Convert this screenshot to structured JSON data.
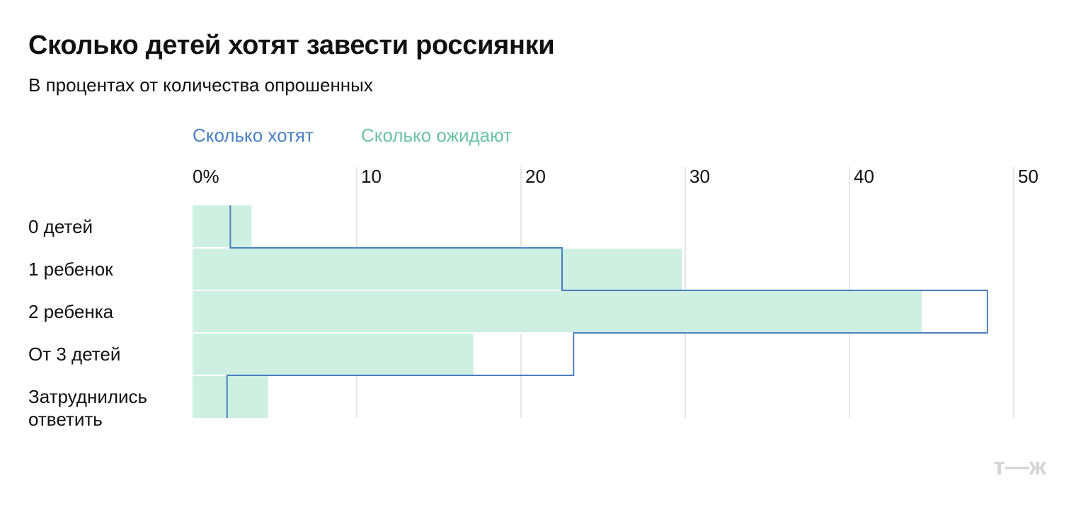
{
  "header": {
    "title": "Сколько детей хотят завести россиянки",
    "subtitle": "В процентах от количества опрошенных"
  },
  "logo": {
    "text": "т—ж"
  },
  "colors": {
    "want": "#4a7fc1",
    "expect_text": "#6cc3a2",
    "expect_fill": "#cdf0e2",
    "grid": "#dddddd",
    "logo": "#d4d4d4"
  },
  "chart_data": {
    "type": "bar",
    "orientation": "horizontal",
    "categories": [
      "0 детей",
      "1 ребенок",
      "2 ребенка",
      "От 3 детей",
      "Затруднились\nответить"
    ],
    "series": [
      {
        "name": "Сколько хотят",
        "style": "step-outline",
        "values": [
          2.3,
          22.5,
          48.4,
          23.2,
          2.1
        ]
      },
      {
        "name": "Сколько ожидают",
        "style": "filled-bar",
        "values": [
          3.6,
          29.8,
          44.4,
          17.1,
          4.6
        ]
      }
    ],
    "x_ticks": [
      "0%",
      "10",
      "20",
      "30",
      "40",
      "50"
    ],
    "x_tick_values": [
      0,
      10,
      20,
      30,
      40,
      50
    ],
    "xlim": [
      0,
      50
    ],
    "grid": true,
    "legend_position": "top-left"
  }
}
